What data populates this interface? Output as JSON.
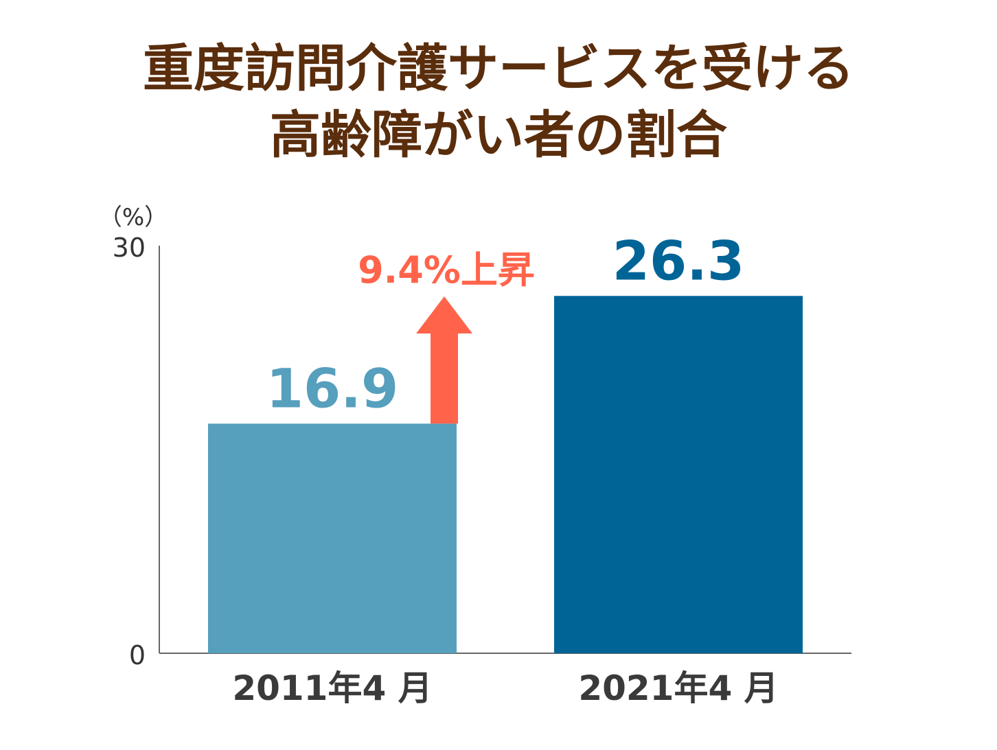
{
  "chart_data": {
    "type": "bar",
    "title_lines": [
      "重度訪問介護サービスを受ける",
      "高齢障がい者の割合"
    ],
    "unit_label": "（%）",
    "categories": [
      "2011年4 月",
      "2021年4 月"
    ],
    "values": [
      16.9,
      26.3
    ],
    "value_labels": [
      "16.9",
      "26.3"
    ],
    "ylim": [
      0,
      30
    ],
    "ytick_labels": [
      "0",
      "30"
    ],
    "annotation": "9.4%上昇",
    "grid": false,
    "legend": "none"
  },
  "colors": {
    "title": "#5a2d0c",
    "bars": [
      "#569fbd",
      "#006497"
    ],
    "annotation": "#ff644b",
    "axis": "#666666",
    "tick_text": "#333333",
    "category_text": "#3a3a3a"
  }
}
